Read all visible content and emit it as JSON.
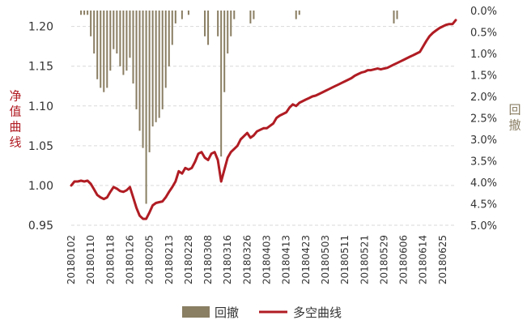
{
  "chart_data": {
    "type": "line",
    "left_axis": {
      "label": "净值曲线",
      "range": [
        0.95,
        1.22
      ],
      "ticks": [
        "1.20",
        "1.15",
        "1.10",
        "1.05",
        "1.00",
        "0.95"
      ],
      "tick_values": [
        1.2,
        1.15,
        1.1,
        1.05,
        1.0,
        0.95
      ]
    },
    "right_axis": {
      "label": "回撤",
      "range": [
        0.0,
        5.0
      ],
      "ticks": [
        "0.0%",
        "0.5%",
        "1.0%",
        "1.5%",
        "2.0%",
        "2.5%",
        "3.0%",
        "3.5%",
        "4.0%",
        "4.5%",
        "5.0%"
      ],
      "tick_values": [
        0,
        0.5,
        1.0,
        1.5,
        2.0,
        2.5,
        3.0,
        3.5,
        4.0,
        4.5,
        5.0
      ],
      "inverted": true
    },
    "x_labels": [
      "20180102",
      "20180110",
      "20180118",
      "20180126",
      "20180205",
      "20180213",
      "20180228",
      "20180308",
      "20180316",
      "20180326",
      "20180403",
      "20180413",
      "20180423",
      "20180503",
      "20180511",
      "20180521",
      "20180529",
      "20180606",
      "20180614",
      "20180625"
    ],
    "x_label_positions": [
      0,
      6,
      12,
      18,
      24,
      30,
      36,
      42,
      48,
      54,
      60,
      66,
      72,
      78,
      84,
      90,
      96,
      102,
      108,
      114
    ],
    "series": [
      {
        "name": "多空曲线",
        "color": "#b01c23",
        "axis": "left",
        "values": [
          1.0,
          1.005,
          1.005,
          1.006,
          1.005,
          1.006,
          1.002,
          0.995,
          0.988,
          0.985,
          0.983,
          0.985,
          0.992,
          0.998,
          0.996,
          0.993,
          0.992,
          0.994,
          0.998,
          0.985,
          0.972,
          0.962,
          0.958,
          0.958,
          0.966,
          0.975,
          0.978,
          0.979,
          0.98,
          0.985,
          0.992,
          0.998,
          1.005,
          1.018,
          1.015,
          1.022,
          1.02,
          1.022,
          1.03,
          1.04,
          1.042,
          1.035,
          1.032,
          1.04,
          1.042,
          1.032,
          1.005,
          1.02,
          1.035,
          1.042,
          1.046,
          1.05,
          1.058,
          1.062,
          1.066,
          1.06,
          1.063,
          1.068,
          1.07,
          1.072,
          1.072,
          1.075,
          1.078,
          1.085,
          1.088,
          1.09,
          1.092,
          1.098,
          1.102,
          1.1,
          1.104,
          1.106,
          1.108,
          1.11,
          1.112,
          1.113,
          1.115,
          1.117,
          1.119,
          1.121,
          1.123,
          1.125,
          1.127,
          1.129,
          1.131,
          1.133,
          1.135,
          1.138,
          1.14,
          1.142,
          1.143,
          1.145,
          1.145,
          1.146,
          1.147,
          1.146,
          1.147,
          1.148,
          1.15,
          1.152,
          1.154,
          1.156,
          1.158,
          1.16,
          1.162,
          1.164,
          1.166,
          1.168,
          1.175,
          1.182,
          1.188,
          1.192,
          1.195,
          1.198,
          1.2,
          1.202,
          1.203,
          1.203,
          1.208
        ]
      },
      {
        "name": "回撤",
        "color": "#8a7e63",
        "axis": "right",
        "type": "bar",
        "values": [
          0.0,
          0.0,
          0.0,
          0.1,
          0.1,
          0.1,
          0.6,
          1.0,
          1.6,
          1.8,
          1.9,
          1.8,
          1.4,
          0.9,
          1.0,
          1.3,
          1.5,
          1.4,
          1.1,
          1.7,
          2.3,
          2.8,
          3.2,
          4.5,
          3.3,
          2.7,
          2.6,
          2.5,
          2.3,
          1.8,
          1.3,
          0.8,
          0.3,
          0.0,
          0.2,
          0.0,
          0.1,
          0.0,
          0.0,
          0.0,
          0.0,
          0.6,
          0.8,
          0.0,
          0.0,
          0.6,
          3.4,
          1.9,
          1.0,
          0.6,
          0.2,
          0.0,
          0.0,
          0.0,
          0.0,
          0.3,
          0.2,
          0.0,
          0.0,
          0.0,
          0.0,
          0.0,
          0.0,
          0.0,
          0.0,
          0.0,
          0.0,
          0.0,
          0.0,
          0.2,
          0.1,
          0.0,
          0.0,
          0.0,
          0.0,
          0.0,
          0.0,
          0.0,
          0.0,
          0.0,
          0.0,
          0.0,
          0.0,
          0.0,
          0.0,
          0.0,
          0.0,
          0.0,
          0.0,
          0.0,
          0.0,
          0.0,
          0.0,
          0.0,
          0.0,
          0.0,
          0.0,
          0.0,
          0.0,
          0.3,
          0.2,
          0.0,
          0.0,
          0.0,
          0.0,
          0.0,
          0.0,
          0.0,
          0.0,
          0.0,
          0.0,
          0.0,
          0.0,
          0.0,
          0.0,
          0.0,
          0.0,
          0.0,
          0.0,
          0.0
        ]
      }
    ],
    "legend": {
      "position": "bottom",
      "items": [
        {
          "label": "回撤",
          "marker": "square",
          "color": "#8a7e63"
        },
        {
          "label": "多空曲线",
          "marker": "line",
          "color": "#b01c23"
        }
      ]
    },
    "grid": {
      "horizontal": true,
      "style": "dashed",
      "color": "#d9d9d9"
    }
  }
}
